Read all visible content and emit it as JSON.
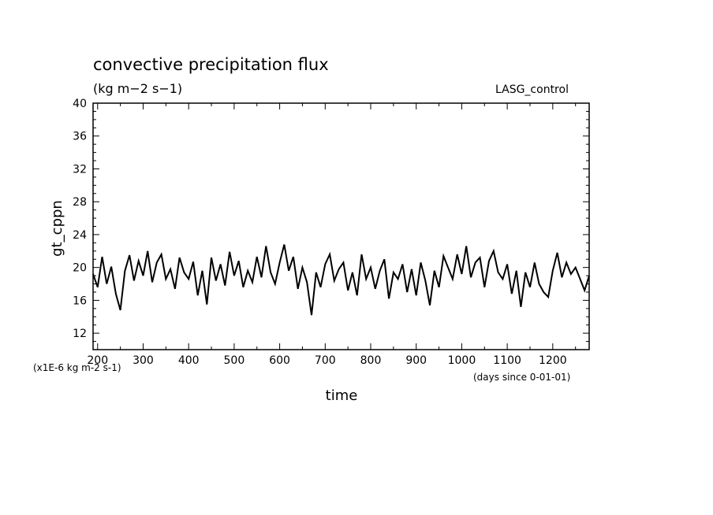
{
  "chart_data": {
    "type": "line",
    "title": "convective precipitation flux",
    "units": "(kg m−2 s−1)",
    "run_label": "LASG_control",
    "xlabel": "time",
    "ylabel": "gt_cppn",
    "x_units_note": "(days since 0-01-01)",
    "y_scale_note": "(x1E-6 kg m-2 s-1)",
    "xlim": [
      190,
      1280
    ],
    "ylim": [
      10,
      40
    ],
    "x_ticks": [
      200,
      300,
      400,
      500,
      600,
      700,
      800,
      900,
      1000,
      1100,
      1200
    ],
    "x_tick_labels": [
      "200",
      "300",
      "400",
      "500",
      "600",
      "700",
      "800",
      "900",
      "1000",
      "1100",
      "1200"
    ],
    "y_ticks": [
      12,
      16,
      20,
      24,
      28,
      32,
      36,
      40
    ],
    "y_tick_labels": [
      "12",
      "16",
      "20",
      "24",
      "28",
      "32",
      "36",
      "40"
    ],
    "grid": false,
    "series": [
      {
        "color": "#000000",
        "x": [
          190,
          200,
          210,
          220,
          230,
          240,
          250,
          260,
          270,
          280,
          290,
          300,
          310,
          320,
          330,
          340,
          350,
          360,
          370,
          380,
          390,
          400,
          410,
          420,
          430,
          440,
          450,
          460,
          470,
          480,
          490,
          500,
          510,
          520,
          530,
          540,
          550,
          560,
          570,
          580,
          590,
          600,
          610,
          620,
          630,
          640,
          650,
          660,
          670,
          680,
          690,
          700,
          710,
          720,
          730,
          740,
          750,
          760,
          770,
          780,
          790,
          800,
          810,
          820,
          830,
          840,
          850,
          860,
          870,
          880,
          890,
          900,
          910,
          920,
          930,
          940,
          950,
          960,
          970,
          980,
          990,
          1000,
          1010,
          1020,
          1030,
          1040,
          1050,
          1060,
          1070,
          1080,
          1090,
          1100,
          1110,
          1120,
          1130,
          1140,
          1150,
          1160,
          1170,
          1180,
          1190,
          1200,
          1210,
          1220,
          1230,
          1240,
          1250,
          1260,
          1270,
          1280
        ],
        "values": [
          19.2,
          17.6,
          21.3,
          18.0,
          20.1,
          16.8,
          14.8,
          19.6,
          21.5,
          18.4,
          20.8,
          19.0,
          22.0,
          18.2,
          20.6,
          21.6,
          18.6,
          19.8,
          17.4,
          21.2,
          19.4,
          18.6,
          20.7,
          16.6,
          19.6,
          15.5,
          21.2,
          18.4,
          20.4,
          17.8,
          21.9,
          19.0,
          20.8,
          17.6,
          19.6,
          18.2,
          21.3,
          18.8,
          22.6,
          19.4,
          18.0,
          20.6,
          22.8,
          19.6,
          21.3,
          17.4,
          20.0,
          18.2,
          14.2,
          19.4,
          17.6,
          20.4,
          21.6,
          18.4,
          19.8,
          20.6,
          17.2,
          19.4,
          16.6,
          21.6,
          18.6,
          20.0,
          17.4,
          19.6,
          21.0,
          16.2,
          19.4,
          18.6,
          20.4,
          17.0,
          19.8,
          16.6,
          20.6,
          18.4,
          15.4,
          19.6,
          17.6,
          21.4,
          20.0,
          18.6,
          21.6,
          19.2,
          22.6,
          18.8,
          20.6,
          21.2,
          17.6,
          20.8,
          22.0,
          19.4,
          18.6,
          20.4,
          16.8,
          19.6,
          15.2,
          19.4,
          17.6,
          20.6,
          18.0,
          17.0,
          16.4,
          19.6,
          21.8,
          18.8,
          20.6,
          19.2,
          20.0,
          18.6,
          17.2,
          19.0
        ]
      }
    ]
  }
}
